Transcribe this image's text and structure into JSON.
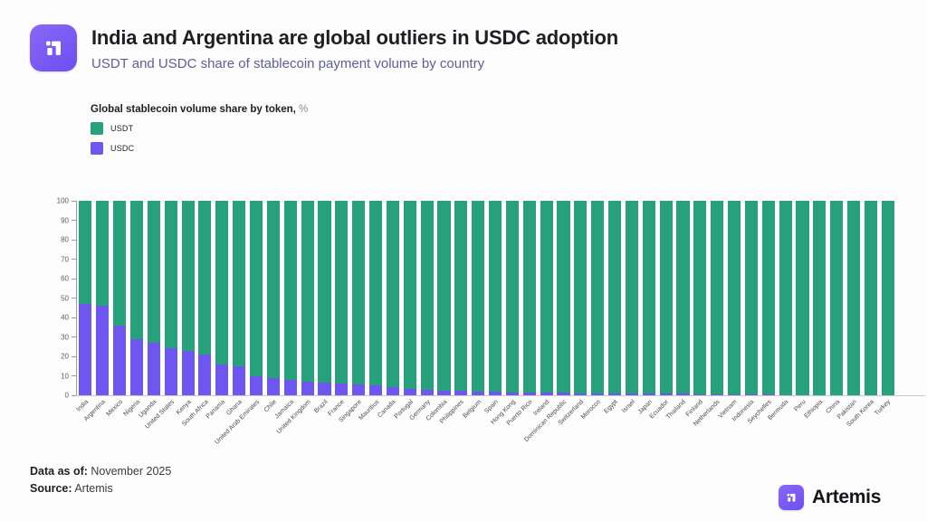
{
  "header": {
    "title": "India and Argentina are global outliers in USDC adoption",
    "subtitle": "USDT and USDC share of stablecoin payment volume by country"
  },
  "legend": {
    "title": "Global stablecoin volume share by token,",
    "title_suffix": " %",
    "items": [
      {
        "label": "USDT",
        "color": "#26a17b"
      },
      {
        "label": "USDC",
        "color": "#6e56f0"
      }
    ]
  },
  "chart_data": {
    "type": "bar",
    "stacked": true,
    "title": "Global stablecoin volume share by token, %",
    "xlabel": "",
    "ylabel": "",
    "ylim": [
      0,
      100
    ],
    "yticks": [
      0,
      10,
      20,
      30,
      40,
      50,
      60,
      70,
      80,
      90,
      100
    ],
    "grid": false,
    "legend_position": "top-left",
    "categories": [
      "India",
      "Argentina",
      "Mexico",
      "Nigeria",
      "Uganda",
      "United States",
      "Kenya",
      "South Africa",
      "Panama",
      "Ghana",
      "United Arab Emirates",
      "Chile",
      "Jamaica",
      "United Kingdom",
      "Brazil",
      "France",
      "Singapore",
      "Mauritius",
      "Canada",
      "Portugal",
      "Germany",
      "Colombia",
      "Philippines",
      "Belgium",
      "Spain",
      "Hong Kong",
      "Puerto Rico",
      "Ireland",
      "Dominican Republic",
      "Switzerland",
      "Morocco",
      "Egypt",
      "Israel",
      "Japan",
      "Ecuador",
      "Thailand",
      "Finland",
      "Netherlands",
      "Vietnam",
      "Indonesia",
      "Seychelles",
      "Bermuda",
      "Peru",
      "Ethiopia",
      "China",
      "Pakistan",
      "South Korea",
      "Turkey"
    ],
    "series": [
      {
        "name": "USDC",
        "color": "#6e56f0",
        "values": [
          47,
          46,
          36,
          29,
          27,
          24,
          23,
          21,
          16,
          15,
          10,
          9,
          8,
          7,
          6.5,
          6,
          5.5,
          5,
          4,
          3.2,
          2.8,
          2.5,
          2.2,
          2,
          1.8,
          1.6,
          1.5,
          1.4,
          1.2,
          1.1,
          1,
          1,
          0.9,
          0.9,
          0.8,
          0.8,
          0.7,
          0.7,
          0.6,
          0.6,
          0.5,
          0,
          0,
          0,
          0,
          0,
          0,
          0
        ]
      },
      {
        "name": "USDT",
        "color": "#26a17b",
        "values": [
          53,
          54,
          64,
          71,
          73,
          76,
          77,
          79,
          84,
          85,
          90,
          91,
          92,
          93,
          93.5,
          94,
          94.5,
          95,
          96,
          96.8,
          97.2,
          97.5,
          97.8,
          98,
          98.2,
          98.4,
          98.5,
          98.6,
          98.8,
          98.9,
          99,
          99,
          99.1,
          99.1,
          99.2,
          99.2,
          99.3,
          99.3,
          99.4,
          99.4,
          99.5,
          100,
          100,
          100,
          100,
          100,
          100,
          100
        ]
      }
    ]
  },
  "footer": {
    "data_as_of_label": "Data as of:",
    "data_as_of_value": " November 2025",
    "source_label": "Source:",
    "source_value": " Artemis",
    "brand": "Artemis"
  }
}
